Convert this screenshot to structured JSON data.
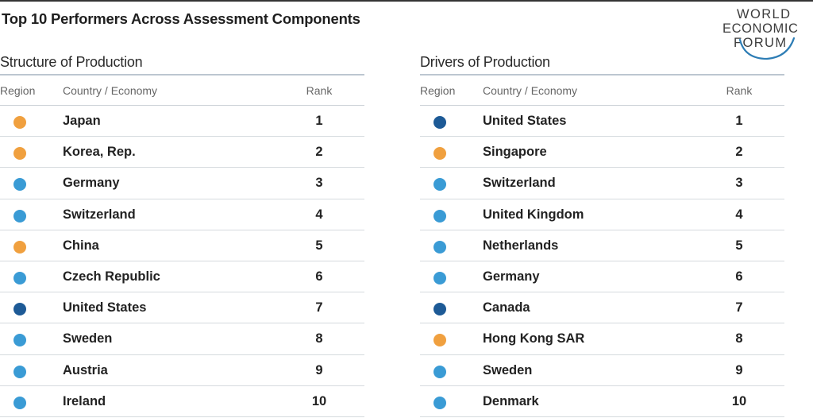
{
  "title": "Top 10 Performers Across Assessment Components",
  "logo": {
    "line1": "WORLD",
    "line2": "ECONOMIC",
    "line3": "FORUM"
  },
  "colors": {
    "orange": "#f0a03f",
    "light_blue": "#3a9bd5",
    "dark_blue": "#1d5a96",
    "logo_arc": "#2d7db5"
  },
  "panels": [
    {
      "title": "Structure of Production",
      "headers": {
        "region": "Region",
        "country": "Country / Economy",
        "rank": "Rank"
      },
      "rows": [
        {
          "region_color": "orange",
          "country": "Japan",
          "rank": "1"
        },
        {
          "region_color": "orange",
          "country": "Korea, Rep.",
          "rank": "2"
        },
        {
          "region_color": "light_blue",
          "country": "Germany",
          "rank": "3"
        },
        {
          "region_color": "light_blue",
          "country": "Switzerland",
          "rank": "4"
        },
        {
          "region_color": "orange",
          "country": "China",
          "rank": "5"
        },
        {
          "region_color": "light_blue",
          "country": "Czech Republic",
          "rank": "6"
        },
        {
          "region_color": "dark_blue",
          "country": "United States",
          "rank": "7"
        },
        {
          "region_color": "light_blue",
          "country": "Sweden",
          "rank": "8"
        },
        {
          "region_color": "light_blue",
          "country": "Austria",
          "rank": "9"
        },
        {
          "region_color": "light_blue",
          "country": "Ireland",
          "rank": "10"
        }
      ]
    },
    {
      "title": "Drivers of Production",
      "headers": {
        "region": "Region",
        "country": "Country / Economy",
        "rank": "Rank"
      },
      "rows": [
        {
          "region_color": "dark_blue",
          "country": "United States",
          "rank": "1"
        },
        {
          "region_color": "orange",
          "country": "Singapore",
          "rank": "2"
        },
        {
          "region_color": "light_blue",
          "country": "Switzerland",
          "rank": "3"
        },
        {
          "region_color": "light_blue",
          "country": "United Kingdom",
          "rank": "4"
        },
        {
          "region_color": "light_blue",
          "country": "Netherlands",
          "rank": "5"
        },
        {
          "region_color": "light_blue",
          "country": "Germany",
          "rank": "6"
        },
        {
          "region_color": "dark_blue",
          "country": "Canada",
          "rank": "7"
        },
        {
          "region_color": "orange",
          "country": "Hong Kong SAR",
          "rank": "8"
        },
        {
          "region_color": "light_blue",
          "country": "Sweden",
          "rank": "9"
        },
        {
          "region_color": "light_blue",
          "country": "Denmark",
          "rank": "10"
        }
      ]
    }
  ]
}
